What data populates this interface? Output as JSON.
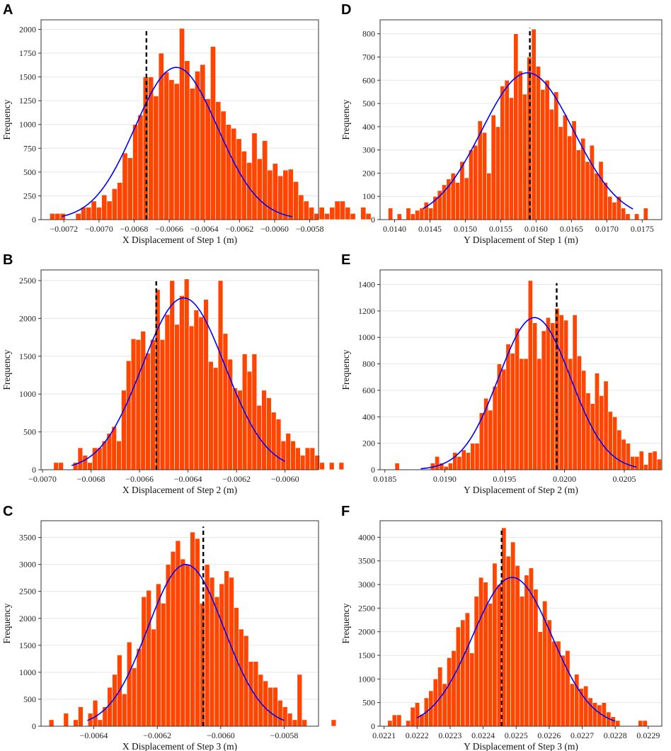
{
  "colors": {
    "bar": "#ff4500",
    "fit": "#0000ff",
    "ref": "#000000"
  },
  "chart_data": [
    {
      "panel": "A",
      "type": "bar",
      "xlabel": "X Displacement of Step 1 (m)",
      "ylabel": "Frequency",
      "x_ticks": [
        -0.0072,
        -0.007,
        -0.0068,
        -0.0066,
        -0.0064,
        -0.0062,
        -0.006,
        -0.0058
      ],
      "x_tick_labels": [
        "−0.0072",
        "−0.0070",
        "−0.0068",
        "−0.0066",
        "−0.0064",
        "−0.0062",
        "−0.0060",
        "−0.0058"
      ],
      "y_ticks": [
        0,
        250,
        500,
        750,
        1000,
        1250,
        1500,
        1750,
        2000
      ],
      "xlim": [
        -0.00733,
        -0.00575
      ],
      "ylim": [
        0,
        2100
      ],
      "bins": {
        "start": -0.00728,
        "width": 2.95e-05
      },
      "values": [
        65,
        65,
        65,
        0,
        0,
        65,
        130,
        130,
        195,
        130,
        260,
        195,
        325,
        390,
        700,
        650,
        1000,
        1100,
        1500,
        1500,
        1300,
        1750,
        1550,
        1470,
        1430,
        2010,
        1670,
        1380,
        1560,
        1630,
        1270,
        1820,
        1240,
        1140,
        1000,
        960,
        850,
        720,
        600,
        910,
        640,
        830,
        520,
        590,
        460,
        520,
        530,
        400,
        260,
        195,
        130,
        65,
        130,
        65,
        130,
        195,
        195,
        130,
        65,
        0,
        130,
        65
      ],
      "fit": {
        "mean": -0.00656,
        "sd": 0.000235,
        "peak": 1600,
        "range": [
          -0.00721,
          -0.0059
        ]
      },
      "ref_line": {
        "x": -0.00673,
        "top": 2000
      }
    },
    {
      "panel": "B",
      "type": "bar",
      "xlabel": "X Displacement of Step 2 (m)",
      "ylabel": "Frequency",
      "x_ticks": [
        -0.007,
        -0.0068,
        -0.0066,
        -0.0064,
        -0.0062,
        -0.006
      ],
      "x_tick_labels": [
        "−0.0070",
        "−0.0068",
        "−0.0066",
        "−0.0064",
        "−0.0062",
        "−0.0060"
      ],
      "y_ticks": [
        0,
        500,
        1000,
        1500,
        2000,
        2500
      ],
      "xlim": [
        -0.007006,
        -0.005862
      ],
      "ylim": [
        0,
        2640
      ],
      "bins": {
        "start": -0.006954,
        "width": 1.994e-05
      },
      "values": [
        95,
        95,
        0,
        0,
        95,
        290,
        190,
        95,
        290,
        290,
        380,
        480,
        570,
        380,
        1050,
        1440,
        1730,
        1720,
        1830,
        1540,
        1720,
        2380,
        1720,
        2050,
        2500,
        1920,
        2300,
        2520,
        1900,
        2110,
        2020,
        2250,
        1430,
        1350,
        2500,
        1800,
        1460,
        1080,
        1050,
        1530,
        1300,
        1530,
        850,
        1050,
        950,
        760,
        670,
        380,
        480,
        380,
        290,
        190,
        290,
        290,
        190,
        95,
        0,
        95,
        0,
        95
      ],
      "fit": {
        "mean": -0.006418,
        "sd": 0.00017,
        "peak": 2270,
        "range": [
          -0.00688,
          -0.006
        ]
      },
      "ref_line": {
        "x": -0.006531,
        "top": 2500
      }
    },
    {
      "panel": "C",
      "type": "bar",
      "xlabel": "X Displacement of Step 3 (m)",
      "ylabel": "Frequency",
      "x_ticks": [
        -0.0064,
        -0.0062,
        -0.006,
        -0.0058
      ],
      "x_tick_labels": [
        "−0.0064",
        "−0.0062",
        "−0.0060",
        "−0.0058"
      ],
      "y_ticks": [
        0,
        500,
        1000,
        1500,
        2000,
        2500,
        3000,
        3500
      ],
      "xlim": [
        -0.006566,
        -0.005692
      ],
      "ylim": [
        0,
        3810
      ],
      "bins": {
        "start": -0.006541,
        "width": 1.533e-05
      },
      "values": [
        120,
        0,
        0,
        240,
        0,
        120,
        360,
        0,
        240,
        480,
        120,
        360,
        720,
        960,
        1320,
        600,
        1560,
        1080,
        1440,
        2400,
        2520,
        1800,
        2640,
        2280,
        3000,
        3240,
        3440,
        3100,
        3000,
        3600,
        3480,
        2280,
        3000,
        2760,
        2400,
        2640,
        2880,
        2760,
        2200,
        1800,
        1680,
        1200,
        1200,
        960,
        840,
        720,
        720,
        480,
        360,
        240,
        120,
        960,
        120,
        0,
        0,
        0,
        0,
        0,
        120
      ],
      "fit": {
        "mean": -0.00611,
        "sd": 0.00012,
        "peak": 3000,
        "range": [
          -0.00642,
          -0.0058
        ]
      },
      "ref_line": {
        "x": -0.006055,
        "top": 3700
      }
    },
    {
      "panel": "D",
      "type": "bar",
      "xlabel": "Y Displacement of Step 1 (m)",
      "ylabel": "Frequency",
      "x_ticks": [
        0.014,
        0.0145,
        0.015,
        0.0155,
        0.016,
        0.0165,
        0.017,
        0.0175
      ],
      "x_tick_labels": [
        "0.0140",
        "0.0145",
        "0.0150",
        "0.0155",
        "0.0160",
        "0.0165",
        "0.0170",
        "0.0175"
      ],
      "y_ticks": [
        0,
        100,
        200,
        300,
        400,
        500,
        600,
        700,
        800
      ],
      "xlim": [
        0.013795,
        0.017777
      ],
      "ylim": [
        0,
        860
      ],
      "bins": {
        "start": 0.01391,
        "width": 6.33e-05
      },
      "values": [
        50,
        0,
        25,
        0,
        50,
        25,
        40,
        50,
        75,
        50,
        100,
        125,
        150,
        175,
        200,
        160,
        250,
        180,
        300,
        320,
        425,
        375,
        200,
        450,
        400,
        575,
        600,
        525,
        800,
        640,
        540,
        700,
        820,
        660,
        560,
        600,
        475,
        550,
        400,
        450,
        360,
        425,
        300,
        350,
        250,
        320,
        200,
        250,
        160,
        100,
        75,
        100,
        50,
        25,
        0,
        25,
        0,
        50
      ],
      "fit": {
        "mean": 0.01588,
        "sd": 0.00065,
        "peak": 632,
        "range": [
          0.0144,
          0.01737
        ]
      },
      "ref_line": {
        "x": 0.015912,
        "top": 825
      }
    },
    {
      "panel": "E",
      "type": "bar",
      "xlabel": "Y Displacement of Step 2 (m)",
      "ylabel": "Frequency",
      "x_ticks": [
        0.0185,
        0.019,
        0.0195,
        0.02,
        0.0205
      ],
      "x_tick_labels": [
        "0.0185",
        "0.0190",
        "0.0195",
        "0.0200",
        "0.0205"
      ],
      "y_ticks": [
        0,
        200,
        400,
        600,
        800,
        1000,
        1200,
        1400
      ],
      "xlim": [
        0.01846,
        0.020813
      ],
      "ylim": [
        0,
        1510
      ],
      "bins": {
        "start": 0.018584,
        "width": 3.71e-05
      },
      "values": [
        50,
        0,
        0,
        0,
        0,
        0,
        0,
        0,
        50,
        100,
        50,
        25,
        50,
        130,
        100,
        150,
        130,
        200,
        200,
        430,
        540,
        450,
        630,
        800,
        760,
        950,
        880,
        1070,
        840,
        840,
        1430,
        1110,
        840,
        1050,
        1150,
        1110,
        1220,
        1170,
        1130,
        840,
        1170,
        860,
        750,
        580,
        500,
        730,
        560,
        670,
        440,
        400,
        300,
        230,
        200,
        100,
        100,
        140,
        40,
        130,
        140,
        80
      ],
      "fit": {
        "mean": 0.01975,
        "sd": 0.0003,
        "peak": 1150,
        "range": [
          0.0188,
          0.0206
        ]
      },
      "ref_line": {
        "x": 0.019935,
        "top": 1410
      }
    },
    {
      "panel": "F",
      "type": "bar",
      "xlabel": "Y Displacement of Step 3 (m)",
      "ylabel": "Frequency",
      "x_ticks": [
        0.0221,
        0.0222,
        0.0223,
        0.0224,
        0.0225,
        0.0226,
        0.0227,
        0.0228,
        0.0229
      ],
      "x_tick_labels": [
        "0.0221",
        "0.0222",
        "0.0223",
        "0.0224",
        "0.0225",
        "0.0226",
        "0.0227",
        "0.0228",
        "0.0229"
      ],
      "y_ticks": [
        0,
        500,
        1000,
        1500,
        2000,
        2500,
        3000,
        3500,
        4000
      ],
      "xlim": [
        0.022088,
        0.022941
      ],
      "ylim": [
        0,
        4350
      ],
      "bins": {
        "start": 0.022111,
        "width": 1.379e-05
      },
      "values": [
        120,
        240,
        240,
        0,
        120,
        400,
        500,
        250,
        600,
        750,
        1000,
        1250,
        900,
        1450,
        1600,
        2100,
        2250,
        2400,
        1550,
        2750,
        3150,
        3050,
        2600,
        3450,
        3000,
        4200,
        3600,
        3900,
        3400,
        2750,
        3200,
        3350,
        2900,
        2000,
        2650,
        2250,
        1800,
        1800,
        1500,
        1600,
        900,
        1100,
        800,
        850,
        600,
        500,
        450,
        500,
        300,
        200,
        120,
        0,
        0,
        0,
        0,
        120,
        120
      ],
      "fit": {
        "mean": 0.022488,
        "sd": 0.00012,
        "peak": 3150,
        "range": [
          0.0222,
          0.0228
        ]
      },
      "ref_line": {
        "x": 0.022456,
        "top": 4150
      }
    }
  ]
}
